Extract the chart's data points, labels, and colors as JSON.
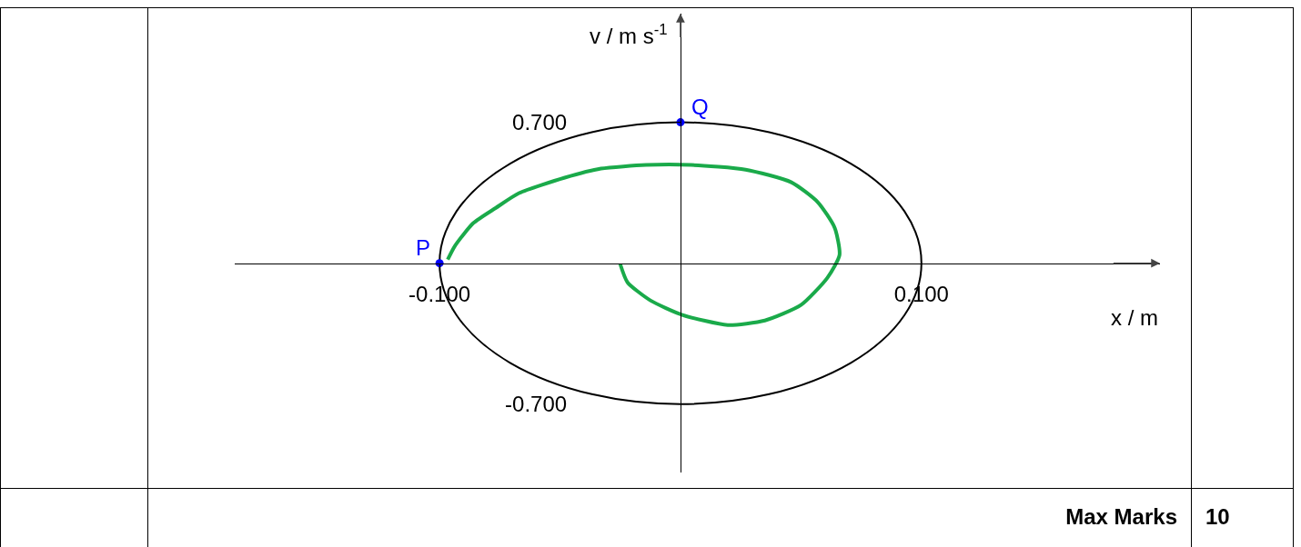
{
  "chart_data": {
    "type": "line",
    "xlabel": "x / m",
    "ylabel": "v / m s$^{-1}$",
    "xlim": [
      -0.185,
      0.199
    ],
    "ylim": [
      -1.04,
      1.24
    ],
    "xticks": [
      {
        "value": -0.1,
        "label": "-0.100"
      },
      {
        "value": 0.1,
        "label": "0.100"
      }
    ],
    "yticks": [
      {
        "value": 0.7,
        "label": "0.700"
      },
      {
        "value": -0.7,
        "label": "-0.700"
      }
    ],
    "grid": false,
    "marker": "none",
    "line_style": "solid",
    "series": [
      {
        "color": "#1aaa4a",
        "x": [
          -0.0966,
          -0.0936,
          -0.086,
          -0.0766,
          -0.067,
          -0.048,
          -0.033,
          -0.0143,
          0.0045,
          0.027,
          0.046,
          0.057,
          0.064,
          0.066,
          0.061,
          0.05,
          0.035,
          0.0196,
          0.0008,
          -0.0125,
          -0.022,
          -0.025
        ],
        "values": [
          0.018,
          0.086,
          0.199,
          0.275,
          0.348,
          0.425,
          0.47,
          0.488,
          0.488,
          0.465,
          0.402,
          0.303,
          0.176,
          0.041,
          -0.072,
          -0.208,
          -0.285,
          -0.307,
          -0.257,
          -0.185,
          -0.095,
          -0.005
        ]
      },
      {
        "type": "scatter",
        "color": "#0000ff",
        "marker": "circle",
        "x": [
          -0.1,
          0
        ],
        "values": [
          0,
          0.7
        ]
      }
    ],
    "annotations": [
      {
        "text": "P",
        "x": -0.1,
        "y": 0
      },
      {
        "text": "Q",
        "x": 0,
        "y": 0.7
      },
      "Max Marks",
      "10"
    ]
  }
}
